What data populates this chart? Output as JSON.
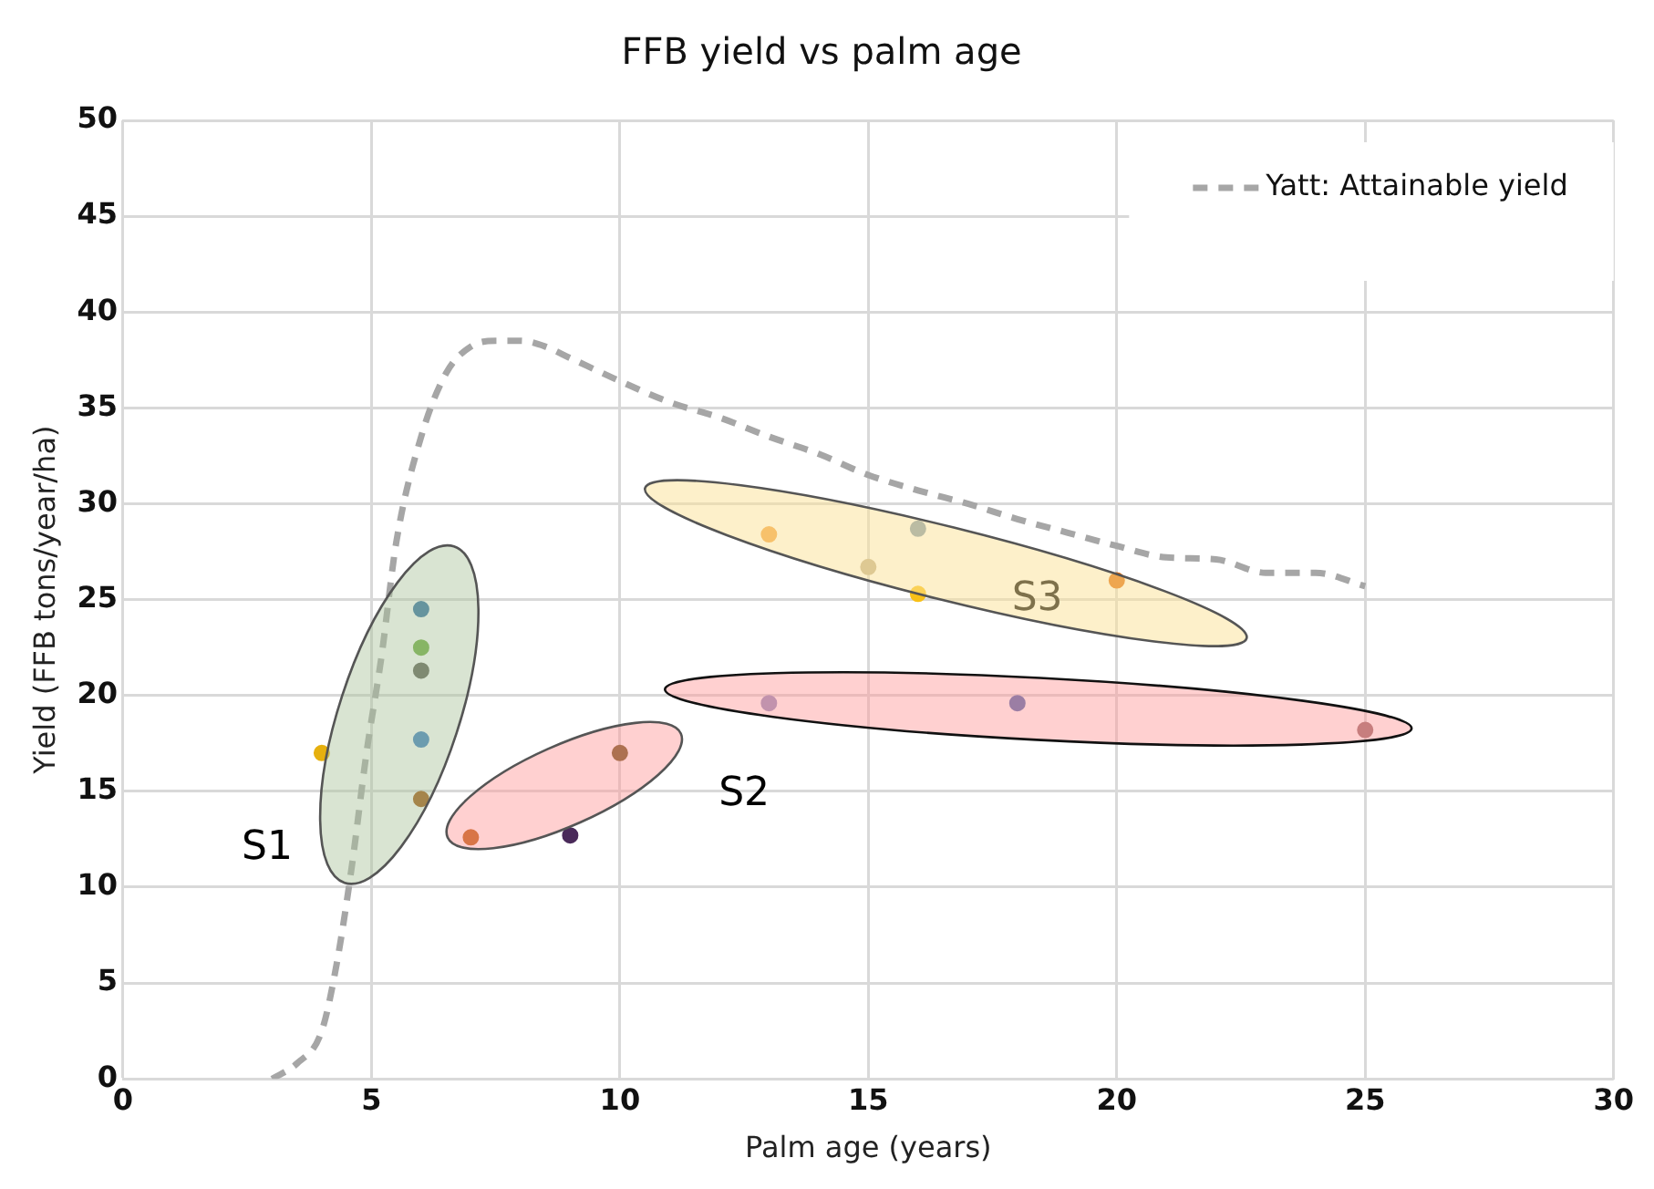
{
  "chart_data": {
    "type": "scatter",
    "title": "FFB yield vs palm age",
    "xlabel": "Palm age (years)",
    "ylabel": "Yield (FFB tons/year/ha)",
    "xlim": [
      0,
      30
    ],
    "xticks": [
      0,
      5,
      10,
      15,
      20,
      25,
      30
    ],
    "ylim": [
      0,
      50
    ],
    "yticks": [
      0,
      5,
      10,
      15,
      20,
      25,
      30,
      35,
      40,
      45,
      50
    ],
    "grid": true,
    "legend": "top right",
    "annotations": [
      "S1",
      "S2",
      "S3"
    ],
    "series": [
      {
        "type": "scatter",
        "x": [
          4,
          6,
          6,
          6,
          6,
          6,
          7,
          9,
          10,
          13,
          13,
          15,
          16,
          16,
          18,
          20,
          25
        ],
        "values": [
          17,
          24.5,
          22.5,
          21.3,
          17.7,
          14.6,
          12.6,
          12.7,
          17,
          28.4,
          19.6,
          26.7,
          28.7,
          25.3,
          19.6,
          26,
          18.2
        ],
        "colors": [
          "#e6b00e",
          "#2e6da0",
          "#6aaa3a",
          "#5c5c50",
          "#3a7cc0",
          "#a0520a",
          "#b85a06",
          "#4a2a5a",
          "#6b5218",
          "#f2a040",
          "#9090c0",
          "#c0b090",
          "#7a96b0",
          "#f8c018",
          "#4a6ab0",
          "#e06a0a",
          "#9a6a6a"
        ],
        "marker": "circle"
      },
      {
        "type": "line",
        "name": "Yatt: Attainable yield",
        "color": "#a6a6a6",
        "line_style": "dashed",
        "marker": "none",
        "x": [
          3,
          3.5,
          4,
          4.3,
          4.6,
          4.9,
          5.2,
          5.5,
          6,
          6.5,
          7,
          7.5,
          8,
          8.5,
          9,
          10,
          11,
          12,
          13,
          14,
          15,
          16,
          17,
          18,
          19,
          20,
          21,
          22,
          23,
          24,
          25
        ],
        "values": [
          0,
          0.8,
          2.5,
          6,
          11,
          17,
          22,
          28,
          33.5,
          36.8,
          38.2,
          38.5,
          38.5,
          38.2,
          37.6,
          36.4,
          35.3,
          34.5,
          33.5,
          32.6,
          31.5,
          30.7,
          30,
          29.2,
          28.5,
          27.8,
          27.2,
          27.1,
          26.4,
          26.4,
          25.7
        ]
      }
    ]
  }
}
